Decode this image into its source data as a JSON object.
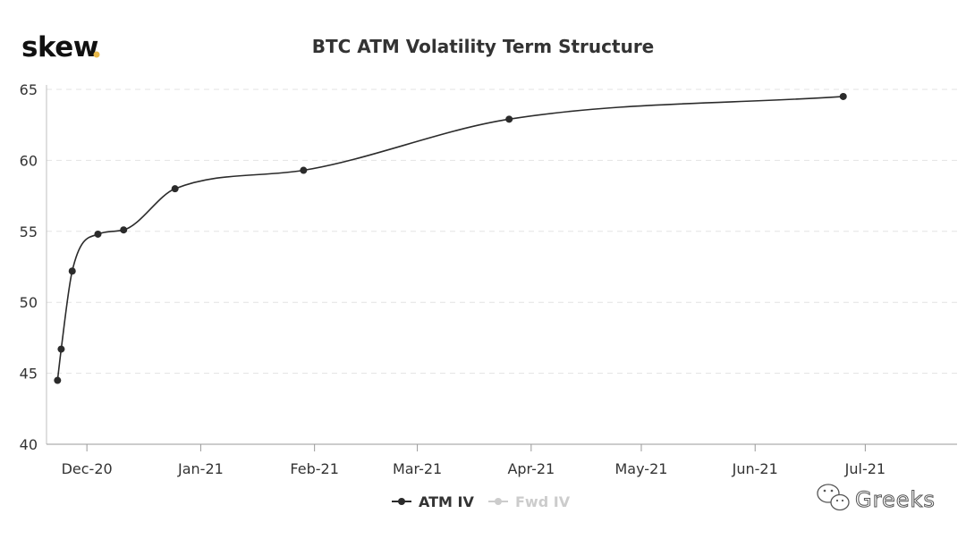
{
  "brand": {
    "logo": "skew",
    "logo_dot": ".",
    "dot_color": "#e8b84a"
  },
  "watermark": {
    "text": "Greeks",
    "icon": "wechat-icon"
  },
  "chart_data": {
    "type": "line",
    "title": "BTC ATM Volatility Term Structure",
    "xlabel": "",
    "ylabel": "",
    "ylim": [
      40,
      65
    ],
    "yticks": [
      40,
      45,
      50,
      55,
      60,
      65
    ],
    "xlim": [
      "2020-11-20",
      "2021-07-26"
    ],
    "xticks": [
      {
        "date": "2020-12-01",
        "label": "Dec-20"
      },
      {
        "date": "2021-01-01",
        "label": "Jan-21"
      },
      {
        "date": "2021-02-01",
        "label": "Feb-21"
      },
      {
        "date": "2021-03-01",
        "label": "Mar-21"
      },
      {
        "date": "2021-04-01",
        "label": "Apr-21"
      },
      {
        "date": "2021-05-01",
        "label": "May-21"
      },
      {
        "date": "2021-06-01",
        "label": "Jun-21"
      },
      {
        "date": "2021-07-01",
        "label": "Jul-21"
      }
    ],
    "grid": true,
    "legend_position": "bottom-center",
    "series": [
      {
        "name": "ATM IV",
        "color": "#2b2b2b",
        "visible": true,
        "points": [
          {
            "x": "2020-11-23",
            "y": 44.5
          },
          {
            "x": "2020-11-24",
            "y": 46.7
          },
          {
            "x": "2020-11-27",
            "y": 52.2
          },
          {
            "x": "2020-12-04",
            "y": 54.8
          },
          {
            "x": "2020-12-11",
            "y": 55.1
          },
          {
            "x": "2020-12-25",
            "y": 58.0
          },
          {
            "x": "2021-01-29",
            "y": 59.3
          },
          {
            "x": "2021-03-26",
            "y": 62.9
          },
          {
            "x": "2021-06-25",
            "y": 64.5
          }
        ]
      },
      {
        "name": "Fwd IV",
        "color": "#cccccc",
        "visible": false,
        "points": []
      }
    ]
  }
}
